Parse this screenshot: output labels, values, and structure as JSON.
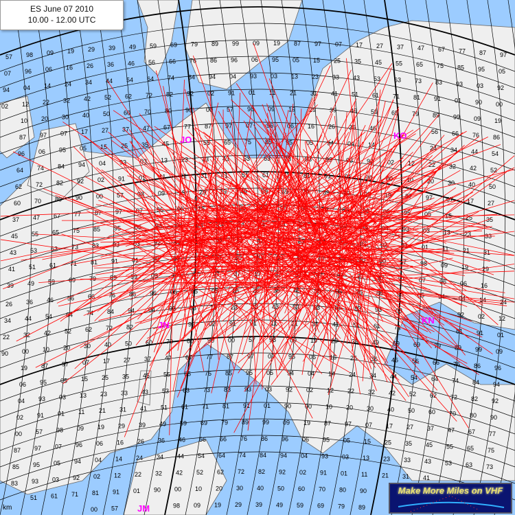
{
  "title": {
    "line1": "ES June 07 2010",
    "line2": "10.00 - 12.00 UTC"
  },
  "colors": {
    "sea": "#9cccff",
    "land": "#efefef",
    "grid": "#000000",
    "paths": "#ff0000",
    "square_labels": "#ff00ff"
  },
  "field_labels": [
    "JO",
    "KO",
    "JN",
    "KN",
    "JM"
  ],
  "scale_label": "km",
  "logo": {
    "text": "Make More Miles on VHF"
  },
  "grid_numbers": [
    "57",
    "98",
    "09",
    "19",
    "29",
    "39",
    "49",
    "59",
    "69",
    "79",
    "89",
    "99",
    "09",
    "19",
    "87",
    "97",
    "07",
    "17",
    "27",
    "37",
    "47",
    "67",
    "77",
    "87",
    "97",
    "07",
    "96",
    "06",
    "16",
    "26",
    "36",
    "46",
    "56",
    "66",
    "76",
    "86",
    "96",
    "06",
    "95",
    "05",
    "15",
    "25",
    "35",
    "45",
    "55",
    "65",
    "75",
    "85",
    "95",
    "05",
    "94",
    "04",
    "14",
    "24",
    "34",
    "44",
    "54",
    "64",
    "74",
    "84",
    "94",
    "04",
    "93",
    "03",
    "13",
    "23",
    "33",
    "43",
    "53",
    "63",
    "73",
    "83",
    "93",
    "03",
    "92",
    "02",
    "12",
    "22",
    "32",
    "42",
    "52",
    "62",
    "72",
    "82",
    "92",
    "02",
    "91",
    "01",
    "11",
    "21",
    "31",
    "41",
    "51",
    "61",
    "71",
    "81",
    "91",
    "01",
    "90",
    "00",
    "10",
    "20",
    "30",
    "40",
    "50",
    "60",
    "70",
    "80",
    "90",
    "00"
  ]
}
